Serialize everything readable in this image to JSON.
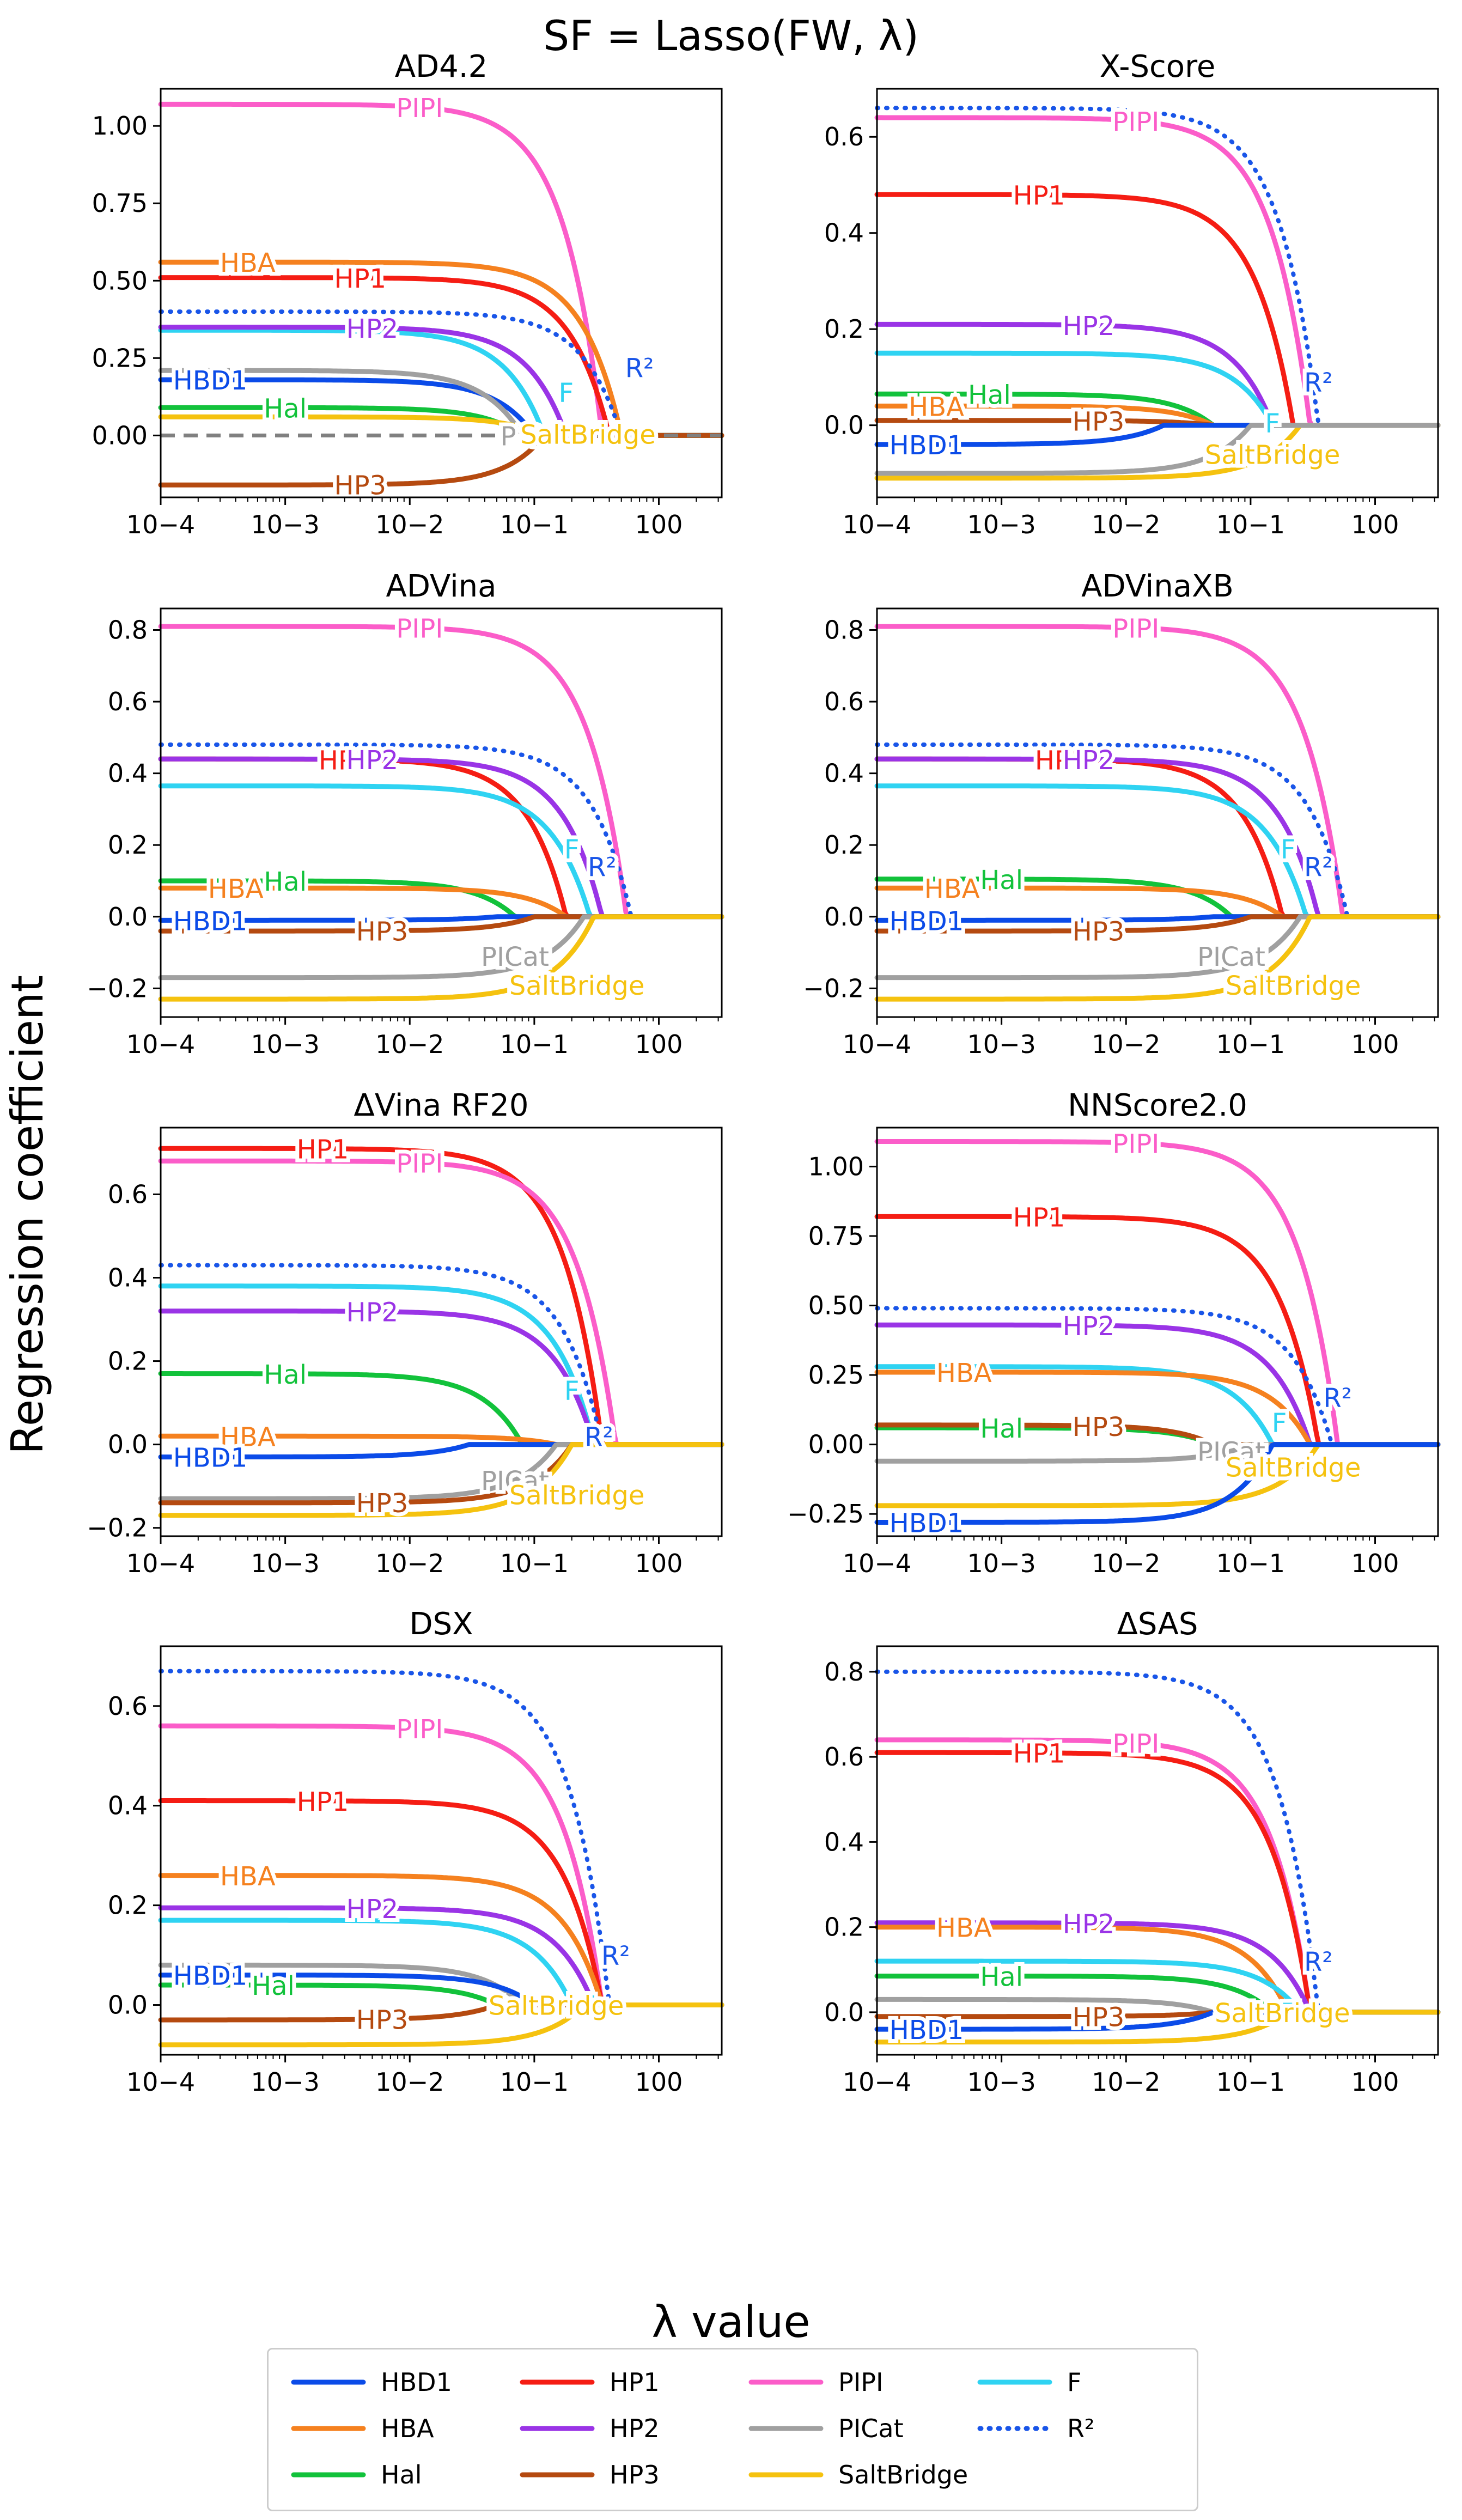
{
  "figure": {
    "suptitle": "SF = Lasso(FW, λ)",
    "xlabel": "λ value",
    "ylabel": "Regression coefficient",
    "xtick_labels": [
      "10−4",
      "10−3",
      "10−2",
      "10−1",
      "100"
    ]
  },
  "legend": [
    {
      "key": "HBD1",
      "label": "HBD1",
      "color": "#0b4be8",
      "style": "solid"
    },
    {
      "key": "HBA",
      "label": "HBA",
      "color": "#f5811f",
      "style": "solid"
    },
    {
      "key": "Hal",
      "label": "Hal",
      "color": "#12c23b",
      "style": "solid"
    },
    {
      "key": "HP1",
      "label": "HP1",
      "color": "#f51d14",
      "style": "solid"
    },
    {
      "key": "HP2",
      "label": "HP2",
      "color": "#9a34e6",
      "style": "solid"
    },
    {
      "key": "HP3",
      "label": "HP3",
      "color": "#b54a10",
      "style": "solid"
    },
    {
      "key": "PIPI",
      "label": "PIPI",
      "color": "#fb5dc9",
      "style": "solid"
    },
    {
      "key": "PICat",
      "label": "PICat",
      "color": "#a0a0a0",
      "style": "solid"
    },
    {
      "key": "SaltBridge",
      "label": "SaltBridge",
      "color": "#f5c20f",
      "style": "solid"
    },
    {
      "key": "F",
      "label": "F",
      "color": "#2fd3f2",
      "style": "solid"
    },
    {
      "key": "R2",
      "label": "R²",
      "color": "#1955e8",
      "style": "dotted"
    }
  ],
  "chart_data": [
    {
      "type": "line",
      "title": "AD4.2",
      "xscale": "log",
      "xlim": [
        0.0001,
        3.2
      ],
      "ylim": [
        -0.2,
        1.12
      ],
      "yticks": [
        0.0,
        0.25,
        0.5,
        0.75,
        1.0
      ],
      "ytick_labels": [
        "0.00",
        "0.25",
        "0.50",
        "0.75",
        "1.00"
      ],
      "series": [
        {
          "name": "PIPI",
          "v0": 1.07,
          "lam": 0.35,
          "label": "PIPI",
          "lx": 0.012
        },
        {
          "name": "HBA",
          "v0": 0.56,
          "lam": 0.5,
          "label": "HBA",
          "lx": 0.0005
        },
        {
          "name": "HP1",
          "v0": 0.51,
          "lam": 0.4,
          "label": "HP1",
          "lx": 0.004
        },
        {
          "name": "R2",
          "v0": 0.4,
          "lam": 0.5,
          "label": "R²",
          "lx": 0.7,
          "ly": 0.22
        },
        {
          "name": "F",
          "v0": 0.34,
          "lam": 0.12,
          "label": "F",
          "lx": 0.18,
          "ly": 0.14
        },
        {
          "name": "HP2",
          "v0": 0.35,
          "lam": 0.18,
          "label": "HP2",
          "lx": 0.005
        },
        {
          "name": "HBD1",
          "v0": 0.18,
          "lam": 0.1,
          "label": "HBD1",
          "lx": 0.00025
        },
        {
          "name": "PICat",
          "v0": 0.21,
          "lam": 0.08,
          "label": "PICat",
          "lx": 0.1
        },
        {
          "name": "Hal",
          "v0": 0.09,
          "lam": 0.08,
          "label": "Hal",
          "lx": 0.001
        },
        {
          "name": "SaltBridge",
          "v0": 0.06,
          "lam": 0.12,
          "label": "SaltBridge",
          "lx": 0.27,
          "ly": 0.005
        },
        {
          "name": "HP3",
          "v0": -0.16,
          "lam": 0.12,
          "label": "HP3",
          "lx": 0.004
        },
        {
          "name": "PICatZero",
          "v0": 0.0,
          "lam": 0.3,
          "label": ""
        }
      ]
    },
    {
      "type": "line",
      "title": "X-Score",
      "xscale": "log",
      "xlim": [
        0.0001,
        3.2
      ],
      "ylim": [
        -0.15,
        0.7
      ],
      "yticks": [
        0.0,
        0.2,
        0.4,
        0.6
      ],
      "ytick_labels": [
        "0.0",
        "0.2",
        "0.4",
        "0.6"
      ],
      "series": [
        {
          "name": "R2",
          "v0": 0.66,
          "lam": 0.35,
          "label": "R²",
          "lx": 0.35,
          "ly": 0.09
        },
        {
          "name": "PIPI",
          "v0": 0.64,
          "lam": 0.3,
          "label": "PIPI",
          "lx": 0.012
        },
        {
          "name": "HP1",
          "v0": 0.48,
          "lam": 0.22,
          "label": "HP1",
          "lx": 0.002
        },
        {
          "name": "HP2",
          "v0": 0.21,
          "lam": 0.15,
          "label": "HP2",
          "lx": 0.005
        },
        {
          "name": "F",
          "v0": 0.15,
          "lam": 0.15,
          "label": "F",
          "lx": 0.15,
          "ly": 0.005
        },
        {
          "name": "Hal",
          "v0": 0.065,
          "lam": 0.05,
          "label": "Hal",
          "lx": 0.0008
        },
        {
          "name": "HBA",
          "v0": 0.04,
          "lam": 0.05,
          "label": "HBA",
          "lx": 0.0003
        },
        {
          "name": "HP3",
          "v0": 0.01,
          "lam": 0.05,
          "label": "HP3",
          "lx": 0.006
        },
        {
          "name": "HBD1",
          "v0": -0.04,
          "lam": 0.02,
          "label": "HBD1",
          "lx": 0.00025
        },
        {
          "name": "SaltBridge",
          "v0": -0.11,
          "lam": 0.25,
          "label": "SaltBridge",
          "lx": 0.15,
          "ly": -0.06
        },
        {
          "name": "PICat",
          "v0": -0.1,
          "lam": 0.1,
          "label": ""
        }
      ]
    },
    {
      "type": "line",
      "title": "ADVina",
      "xscale": "log",
      "xlim": [
        0.0001,
        3.2
      ],
      "ylim": [
        -0.28,
        0.86
      ],
      "yticks": [
        -0.2,
        0.0,
        0.2,
        0.4,
        0.6,
        0.8
      ],
      "ytick_labels": [
        "−0.2",
        "0.0",
        "0.2",
        "0.4",
        "0.6",
        "0.8"
      ],
      "series": [
        {
          "name": "PIPI",
          "v0": 0.81,
          "lam": 0.55,
          "label": "PIPI",
          "lx": 0.012
        },
        {
          "name": "R2",
          "v0": 0.48,
          "lam": 0.6,
          "label": "R²",
          "lx": 0.35,
          "ly": 0.14
        },
        {
          "name": "HP1",
          "v0": 0.44,
          "lam": 0.18,
          "label": "HP1",
          "lx": 0.003
        },
        {
          "name": "HP2",
          "v0": 0.44,
          "lam": 0.35,
          "label": "HP2",
          "lx": 0.005
        },
        {
          "name": "F",
          "v0": 0.365,
          "lam": 0.28,
          "label": "F",
          "lx": 0.2,
          "ly": 0.19
        },
        {
          "name": "Hal",
          "v0": 0.1,
          "lam": 0.07,
          "label": "Hal",
          "lx": 0.001
        },
        {
          "name": "HBA",
          "v0": 0.08,
          "lam": 0.18,
          "label": "HBA",
          "lx": 0.0004
        },
        {
          "name": "HBD1",
          "v0": -0.01,
          "lam": 0.05,
          "label": "HBD1",
          "lx": 0.00025
        },
        {
          "name": "HP3",
          "v0": -0.04,
          "lam": 0.1,
          "label": "HP3",
          "lx": 0.006
        },
        {
          "name": "PICat",
          "v0": -0.17,
          "lam": 0.25,
          "label": "PICat",
          "lx": 0.07,
          "ly": -0.11
        },
        {
          "name": "SaltBridge",
          "v0": -0.23,
          "lam": 0.3,
          "label": "SaltBridge",
          "lx": 0.22,
          "ly": -0.19
        }
      ]
    },
    {
      "type": "line",
      "title": "ADVinaXB",
      "xscale": "log",
      "xlim": [
        0.0001,
        3.2
      ],
      "ylim": [
        -0.28,
        0.86
      ],
      "yticks": [
        -0.2,
        0.0,
        0.2,
        0.4,
        0.6,
        0.8
      ],
      "ytick_labels": [
        "−0.2",
        "0.0",
        "0.2",
        "0.4",
        "0.6",
        "0.8"
      ],
      "series": [
        {
          "name": "PIPI",
          "v0": 0.81,
          "lam": 0.55,
          "label": "PIPI",
          "lx": 0.012
        },
        {
          "name": "R2",
          "v0": 0.48,
          "lam": 0.6,
          "label": "R²",
          "lx": 0.35,
          "ly": 0.14
        },
        {
          "name": "HP1",
          "v0": 0.44,
          "lam": 0.18,
          "label": "HP1",
          "lx": 0.003
        },
        {
          "name": "HP2",
          "v0": 0.44,
          "lam": 0.35,
          "label": "HP2",
          "lx": 0.005
        },
        {
          "name": "F",
          "v0": 0.365,
          "lam": 0.28,
          "label": "F",
          "lx": 0.2,
          "ly": 0.19
        },
        {
          "name": "Hal",
          "v0": 0.105,
          "lam": 0.07,
          "label": "Hal",
          "lx": 0.001
        },
        {
          "name": "HBA",
          "v0": 0.08,
          "lam": 0.18,
          "label": "HBA",
          "lx": 0.0004
        },
        {
          "name": "HBD1",
          "v0": -0.01,
          "lam": 0.05,
          "label": "HBD1",
          "lx": 0.00025
        },
        {
          "name": "HP3",
          "v0": -0.04,
          "lam": 0.1,
          "label": "HP3",
          "lx": 0.006
        },
        {
          "name": "PICat",
          "v0": -0.17,
          "lam": 0.25,
          "label": "PICat",
          "lx": 0.07,
          "ly": -0.11
        },
        {
          "name": "SaltBridge",
          "v0": -0.23,
          "lam": 0.3,
          "label": "SaltBridge",
          "lx": 0.22,
          "ly": -0.19
        }
      ]
    },
    {
      "type": "line",
      "title": "ΔVina RF20",
      "xscale": "log",
      "xlim": [
        0.0001,
        3.2
      ],
      "ylim": [
        -0.22,
        0.76
      ],
      "yticks": [
        -0.2,
        0.0,
        0.2,
        0.4,
        0.6
      ],
      "ytick_labels": [
        "−0.2",
        "0.0",
        "0.2",
        "0.4",
        "0.6"
      ],
      "series": [
        {
          "name": "HP1",
          "v0": 0.71,
          "lam": 0.35,
          "label": "HP1",
          "lx": 0.002
        },
        {
          "name": "PIPI",
          "v0": 0.68,
          "lam": 0.45,
          "label": "PIPI",
          "lx": 0.012
        },
        {
          "name": "R2",
          "v0": 0.43,
          "lam": 0.35,
          "label": "R²",
          "lx": 0.33,
          "ly": 0.02
        },
        {
          "name": "F",
          "v0": 0.38,
          "lam": 0.3,
          "label": "F",
          "lx": 0.2,
          "ly": 0.13
        },
        {
          "name": "HP2",
          "v0": 0.32,
          "lam": 0.3,
          "label": "HP2",
          "lx": 0.005
        },
        {
          "name": "Hal",
          "v0": 0.17,
          "lam": 0.08,
          "label": "Hal",
          "lx": 0.001
        },
        {
          "name": "HBA",
          "v0": 0.02,
          "lam": 0.15,
          "label": "HBA",
          "lx": 0.0005
        },
        {
          "name": "HBD1",
          "v0": -0.03,
          "lam": 0.03,
          "label": "HBD1",
          "lx": 0.00025
        },
        {
          "name": "PICat",
          "v0": -0.13,
          "lam": 0.15,
          "label": "PICat",
          "lx": 0.07
        },
        {
          "name": "HP3",
          "v0": -0.14,
          "lam": 0.2,
          "label": "HP3",
          "lx": 0.006
        },
        {
          "name": "SaltBridge",
          "v0": -0.17,
          "lam": 0.2,
          "label": "SaltBridge",
          "lx": 0.22,
          "ly": -0.12
        }
      ]
    },
    {
      "type": "line",
      "title": "NNScore2.0",
      "xscale": "log",
      "xlim": [
        0.0001,
        3.2
      ],
      "ylim": [
        -0.33,
        1.14
      ],
      "yticks": [
        -0.25,
        0.0,
        0.25,
        0.5,
        0.75,
        1.0
      ],
      "ytick_labels": [
        "−0.25",
        "0.00",
        "0.25",
        "0.50",
        "0.75",
        "1.00"
      ],
      "series": [
        {
          "name": "PIPI",
          "v0": 1.09,
          "lam": 0.5,
          "label": "PIPI",
          "lx": 0.012
        },
        {
          "name": "HP1",
          "v0": 0.82,
          "lam": 0.35,
          "label": "HP1",
          "lx": 0.002
        },
        {
          "name": "R2",
          "v0": 0.49,
          "lam": 0.45,
          "label": "R²",
          "lx": 0.5,
          "ly": 0.17
        },
        {
          "name": "HP2",
          "v0": 0.43,
          "lam": 0.3,
          "label": "HP2",
          "lx": 0.005
        },
        {
          "name": "F",
          "v0": 0.28,
          "lam": 0.15,
          "label": "F",
          "lx": 0.17,
          "ly": 0.08
        },
        {
          "name": "HBA",
          "v0": 0.26,
          "lam": 0.3,
          "label": "HBA",
          "lx": 0.0005
        },
        {
          "name": "Hal",
          "v0": 0.06,
          "lam": 0.05,
          "label": "Hal",
          "lx": 0.001
        },
        {
          "name": "HP3",
          "v0": 0.07,
          "lam": 0.05,
          "label": "HP3",
          "lx": 0.006
        },
        {
          "name": "PICat",
          "v0": -0.06,
          "lam": 0.1,
          "label": "PICat",
          "lx": 0.07
        },
        {
          "name": "SaltBridge",
          "v0": -0.22,
          "lam": 0.35,
          "label": "SaltBridge",
          "lx": 0.22,
          "ly": -0.08
        },
        {
          "name": "HBD1",
          "v0": -0.28,
          "lam": 0.15,
          "label": "HBD1",
          "lx": 0.00025
        }
      ]
    },
    {
      "type": "line",
      "title": "DSX",
      "xscale": "log",
      "xlim": [
        0.0001,
        3.2
      ],
      "ylim": [
        -0.1,
        0.72
      ],
      "yticks": [
        0.0,
        0.2,
        0.4,
        0.6
      ],
      "ytick_labels": [
        "0.0",
        "0.2",
        "0.4",
        "0.6"
      ],
      "series": [
        {
          "name": "R2",
          "v0": 0.67,
          "lam": 0.4,
          "label": "R²",
          "lx": 0.45,
          "ly": 0.1
        },
        {
          "name": "PIPI",
          "v0": 0.56,
          "lam": 0.35,
          "label": "PIPI",
          "lx": 0.012
        },
        {
          "name": "HP1",
          "v0": 0.41,
          "lam": 0.35,
          "label": "HP1",
          "lx": 0.002
        },
        {
          "name": "HBA",
          "v0": 0.26,
          "lam": 0.35,
          "label": "HBA",
          "lx": 0.0005
        },
        {
          "name": "HP2",
          "v0": 0.195,
          "lam": 0.3,
          "label": "HP2",
          "lx": 0.005
        },
        {
          "name": "F",
          "v0": 0.17,
          "lam": 0.2,
          "label": "F",
          "lx": 0.27,
          "ly": 0.0
        },
        {
          "name": "PICat",
          "v0": 0.08,
          "lam": 0.08,
          "label": ""
        },
        {
          "name": "HBD1",
          "v0": 0.06,
          "lam": 0.1,
          "label": "HBD1",
          "lx": 0.00025
        },
        {
          "name": "Hal",
          "v0": 0.04,
          "lam": 0.05,
          "label": "Hal",
          "lx": 0.0008
        },
        {
          "name": "HP3",
          "v0": -0.03,
          "lam": 0.05,
          "label": "HP3",
          "lx": 0.006
        },
        {
          "name": "SaltBridge",
          "v0": -0.08,
          "lam": 0.25,
          "label": "SaltBridge",
          "lx": 0.15,
          "ly": 0.0
        }
      ]
    },
    {
      "type": "line",
      "title": "ΔSAS",
      "xscale": "log",
      "xlim": [
        0.0001,
        3.2
      ],
      "ylim": [
        -0.1,
        0.86
      ],
      "yticks": [
        0.0,
        0.2,
        0.4,
        0.6,
        0.8
      ],
      "ytick_labels": [
        "0.0",
        "0.2",
        "0.4",
        "0.6",
        "0.8"
      ],
      "series": [
        {
          "name": "R2",
          "v0": 0.8,
          "lam": 0.35,
          "label": "R²",
          "lx": 0.35,
          "ly": 0.12
        },
        {
          "name": "PIPI",
          "v0": 0.64,
          "lam": 0.3,
          "label": "PIPI",
          "lx": 0.012
        },
        {
          "name": "HP1",
          "v0": 0.61,
          "lam": 0.3,
          "label": "HP1",
          "lx": 0.002
        },
        {
          "name": "HP2",
          "v0": 0.21,
          "lam": 0.3,
          "label": "HP2",
          "lx": 0.005
        },
        {
          "name": "HBA",
          "v0": 0.2,
          "lam": 0.2,
          "label": "HBA",
          "lx": 0.0005
        },
        {
          "name": "F",
          "v0": 0.12,
          "lam": 0.25,
          "label": "F",
          "lx": 0.2,
          "ly": 0.0
        },
        {
          "name": "Hal",
          "v0": 0.085,
          "lam": 0.15,
          "label": "Hal",
          "lx": 0.001
        },
        {
          "name": "PICat",
          "v0": 0.03,
          "lam": 0.05,
          "label": ""
        },
        {
          "name": "HP3",
          "v0": -0.01,
          "lam": 0.05,
          "label": "HP3",
          "lx": 0.006
        },
        {
          "name": "HBD1",
          "v0": -0.04,
          "lam": 0.05,
          "label": "HBD1",
          "lx": 0.00025
        },
        {
          "name": "SaltBridge",
          "v0": -0.07,
          "lam": 0.2,
          "label": "SaltBridge",
          "lx": 0.18,
          "ly": 0.0
        }
      ]
    }
  ]
}
